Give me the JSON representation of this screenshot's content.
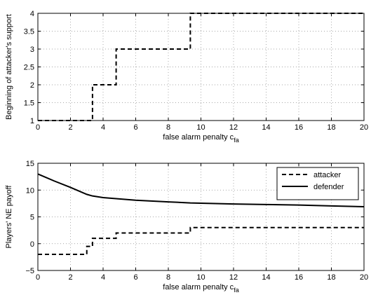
{
  "chart_data": [
    {
      "type": "line",
      "title": "",
      "xlabel": "false alarm penalty c",
      "xlabel_sub": "fa",
      "ylabel": "Beginning of attacker's support",
      "xlim": [
        0,
        20
      ],
      "ylim": [
        1,
        4
      ],
      "xticks": [
        0,
        2,
        4,
        6,
        8,
        10,
        12,
        14,
        16,
        18,
        20
      ],
      "yticks": [
        1,
        1.5,
        2,
        2.5,
        3,
        3.5,
        4
      ],
      "ytick_labels": [
        "1",
        "1.5",
        "2",
        "2.5",
        "3",
        "3.5",
        "4"
      ],
      "grid": true,
      "series": [
        {
          "style": "dashed",
          "color": "#000000",
          "points": [
            [
              0,
              1
            ],
            [
              3.35,
              1
            ],
            [
              3.35,
              2
            ],
            [
              4.8,
              2
            ],
            [
              4.8,
              3
            ],
            [
              9.35,
              3
            ],
            [
              9.35,
              4
            ],
            [
              20,
              4
            ]
          ]
        }
      ]
    },
    {
      "type": "line",
      "title": "",
      "xlabel": "false alarm penalty c",
      "xlabel_sub": "fa",
      "ylabel": "Players' NE payoff",
      "xlim": [
        0,
        20
      ],
      "ylim": [
        -5,
        15
      ],
      "xticks": [
        0,
        2,
        4,
        6,
        8,
        10,
        12,
        14,
        16,
        18,
        20
      ],
      "yticks": [
        -5,
        0,
        5,
        10,
        15
      ],
      "ytick_labels": [
        "−5",
        "0",
        "5",
        "10",
        "15"
      ],
      "grid": true,
      "legend": "top-right",
      "series": [
        {
          "name": "attacker",
          "style": "dashed",
          "color": "#000000",
          "points": [
            [
              0,
              -2
            ],
            [
              3.0,
              -2
            ],
            [
              3.0,
              -0.5
            ],
            [
              3.35,
              -0.5
            ],
            [
              3.35,
              1
            ],
            [
              4.8,
              1
            ],
            [
              4.8,
              2
            ],
            [
              9.35,
              2
            ],
            [
              9.35,
              3
            ],
            [
              20,
              3
            ]
          ]
        },
        {
          "name": "defender",
          "style": "solid",
          "color": "#000000",
          "points": [
            [
              0,
              13
            ],
            [
              1,
              11.7
            ],
            [
              2,
              10.5
            ],
            [
              3,
              9.2
            ],
            [
              3.35,
              8.9
            ],
            [
              4,
              8.6
            ],
            [
              4.8,
              8.4
            ],
            [
              6,
              8.1
            ],
            [
              8,
              7.8
            ],
            [
              9.35,
              7.6
            ],
            [
              12,
              7.4
            ],
            [
              14,
              7.3
            ],
            [
              16,
              7.2
            ],
            [
              18,
              7.05
            ],
            [
              20,
              6.9
            ]
          ]
        }
      ]
    }
  ]
}
